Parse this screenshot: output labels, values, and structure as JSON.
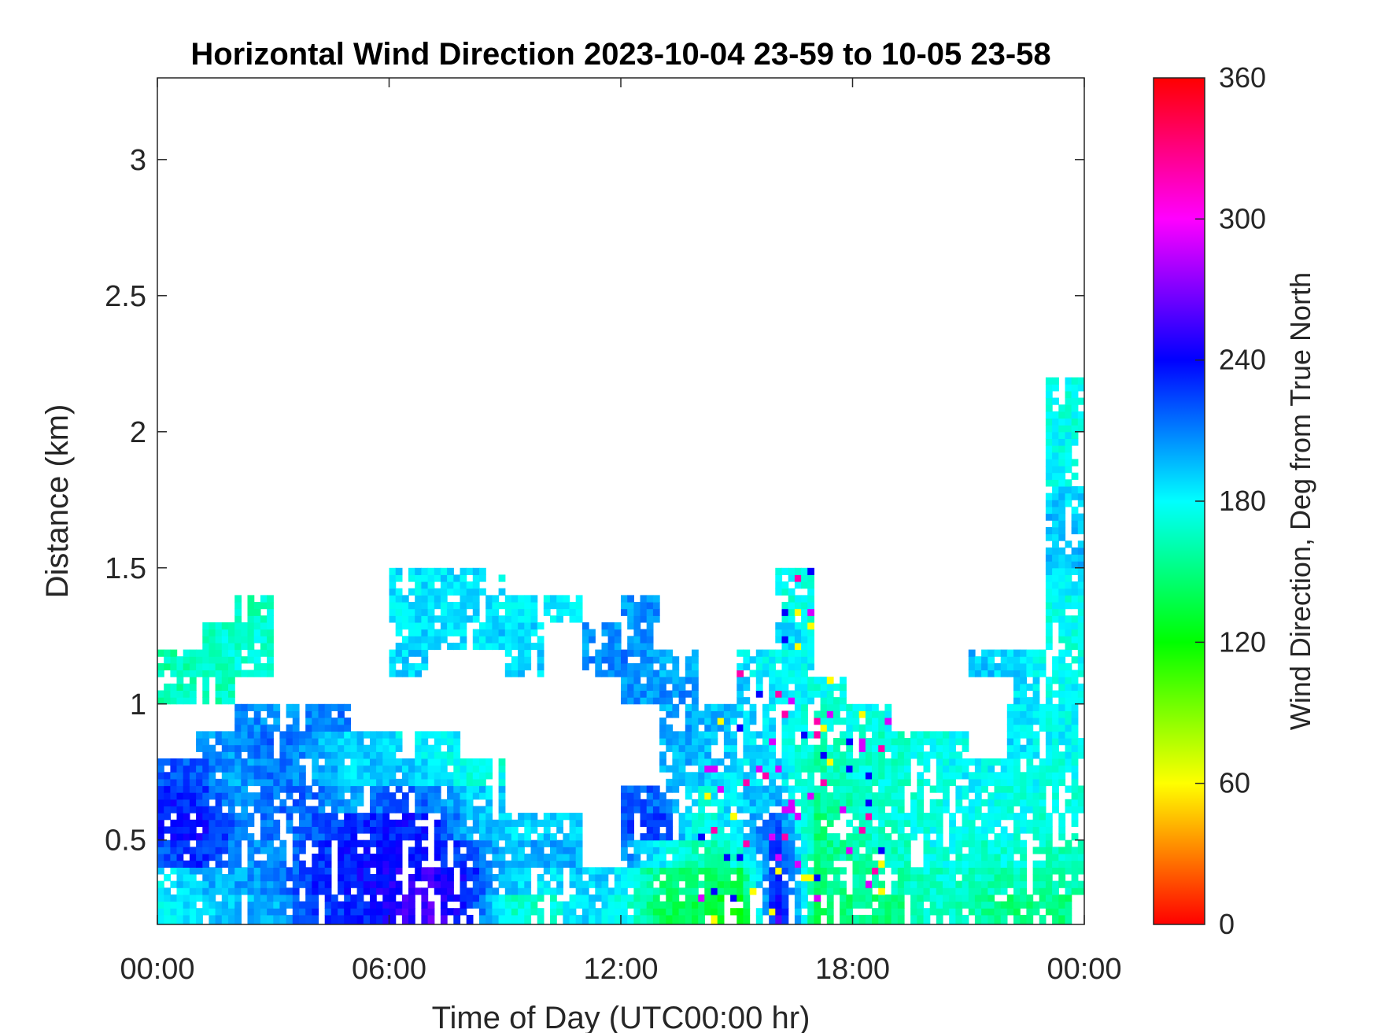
{
  "chart_data": {
    "type": "heatmap",
    "title": "Horizontal Wind Direction 2023-10-04 23-59 to 10-05 23-58",
    "xlabel": "Time of Day (UTC00:00 hr)",
    "ylabel": "Distance (km)",
    "xlim": [
      0,
      24
    ],
    "ylim": [
      0.19,
      3.3
    ],
    "x_ticks": [
      0,
      6,
      12,
      18,
      24
    ],
    "x_tick_labels": [
      "00:00",
      "06:00",
      "12:00",
      "18:00",
      "00:00"
    ],
    "y_ticks": [
      0.5,
      1,
      1.5,
      2,
      2.5,
      3
    ],
    "y_tick_labels": [
      "0.5",
      "1",
      "1.5",
      "2",
      "2.5",
      "3"
    ],
    "colorbar": {
      "label": "Wind Direction, Deg from True North",
      "range": [
        0,
        360
      ],
      "ticks": [
        0,
        60,
        120,
        180,
        240,
        300,
        360
      ],
      "tick_labels": [
        "0",
        "60",
        "120",
        "180",
        "240",
        "300",
        "360"
      ],
      "colormap": "hsv"
    },
    "grid": false,
    "hours": [
      0,
      1,
      2,
      3,
      4,
      5,
      6,
      7,
      8,
      9,
      10,
      11,
      12,
      13,
      14,
      15,
      16,
      17,
      18,
      19,
      20,
      21,
      22,
      23
    ],
    "height_bin_km": 0.1,
    "height_centers_km": [
      0.25,
      0.35,
      0.45,
      0.55,
      0.65,
      0.75,
      0.85,
      0.95,
      1.05,
      1.15,
      1.25,
      1.35,
      1.45,
      1.55,
      1.65,
      1.75,
      1.85,
      1.95,
      2.05,
      2.15
    ],
    "direction_deg": [
      [
        180,
        190,
        195,
        200,
        225,
        230,
        245,
        262,
        230,
        170,
        170,
        190,
        175,
        140,
        140,
        120,
        250,
        140,
        150,
        150,
        170,
        160,
        150,
        150
      ],
      [
        185,
        195,
        200,
        210,
        230,
        235,
        245,
        250,
        235,
        190,
        185,
        195,
        180,
        150,
        150,
        140,
        240,
        150,
        155,
        160,
        170,
        165,
        160,
        160
      ],
      [
        220,
        230,
        210,
        205,
        225,
        235,
        240,
        240,
        220,
        195,
        200,
        null,
        210,
        180,
        160,
        170,
        230,
        150,
        160,
        165,
        175,
        170,
        170,
        165
      ],
      [
        235,
        240,
        215,
        210,
        220,
        230,
        235,
        235,
        195,
        190,
        190,
        null,
        225,
        225,
        170,
        190,
        220,
        150,
        165,
        170,
        175,
        175,
        175,
        170
      ],
      [
        235,
        230,
        205,
        215,
        215,
        200,
        220,
        215,
        190,
        null,
        null,
        null,
        220,
        215,
        175,
        190,
        200,
        155,
        165,
        170,
        175,
        180,
        175,
        175
      ],
      [
        220,
        220,
        200,
        215,
        200,
        190,
        195,
        190,
        175,
        null,
        null,
        null,
        null,
        200,
        195,
        185,
        190,
        160,
        170,
        170,
        175,
        180,
        180,
        175
      ],
      [
        null,
        205,
        205,
        220,
        200,
        190,
        185,
        180,
        null,
        null,
        null,
        null,
        null,
        200,
        195,
        190,
        180,
        165,
        170,
        170,
        175,
        null,
        185,
        180
      ],
      [
        null,
        null,
        210,
        205,
        210,
        null,
        null,
        null,
        null,
        null,
        null,
        null,
        null,
        200,
        200,
        190,
        185,
        170,
        175,
        null,
        null,
        null,
        185,
        180
      ],
      [
        160,
        165,
        null,
        null,
        null,
        null,
        null,
        null,
        null,
        null,
        null,
        null,
        205,
        205,
        null,
        190,
        190,
        175,
        null,
        null,
        null,
        null,
        190,
        180
      ],
      [
        160,
        165,
        170,
        null,
        null,
        null,
        190,
        null,
        null,
        190,
        null,
        205,
        210,
        200,
        null,
        185,
        180,
        null,
        null,
        null,
        null,
        195,
        190,
        175
      ],
      [
        null,
        165,
        170,
        null,
        null,
        null,
        185,
        190,
        185,
        190,
        null,
        205,
        205,
        null,
        null,
        null,
        185,
        null,
        null,
        null,
        null,
        null,
        null,
        175
      ],
      [
        null,
        null,
        165,
        null,
        null,
        null,
        185,
        185,
        185,
        185,
        185,
        null,
        205,
        null,
        null,
        null,
        175,
        null,
        null,
        null,
        null,
        null,
        null,
        175
      ],
      [
        null,
        null,
        null,
        null,
        null,
        null,
        185,
        185,
        185,
        null,
        null,
        null,
        null,
        null,
        null,
        null,
        175,
        null,
        null,
        null,
        null,
        null,
        null,
        185
      ],
      [
        null,
        null,
        null,
        null,
        null,
        null,
        null,
        null,
        null,
        null,
        null,
        null,
        null,
        null,
        null,
        null,
        null,
        null,
        null,
        null,
        null,
        null,
        null,
        195
      ],
      [
        null,
        null,
        null,
        null,
        null,
        null,
        null,
        null,
        null,
        null,
        null,
        null,
        null,
        null,
        null,
        null,
        null,
        null,
        null,
        null,
        null,
        null,
        null,
        195
      ],
      [
        null,
        null,
        null,
        null,
        null,
        null,
        null,
        null,
        null,
        null,
        null,
        null,
        null,
        null,
        null,
        null,
        null,
        null,
        null,
        null,
        null,
        null,
        null,
        190
      ],
      [
        null,
        null,
        null,
        null,
        null,
        null,
        null,
        null,
        null,
        null,
        null,
        null,
        null,
        null,
        null,
        null,
        null,
        null,
        null,
        null,
        null,
        null,
        null,
        180
      ],
      [
        null,
        null,
        null,
        null,
        null,
        null,
        null,
        null,
        null,
        null,
        null,
        null,
        null,
        null,
        null,
        null,
        null,
        null,
        null,
        null,
        null,
        null,
        null,
        178
      ],
      [
        null,
        null,
        null,
        null,
        null,
        null,
        null,
        null,
        null,
        null,
        null,
        null,
        null,
        null,
        null,
        null,
        null,
        null,
        null,
        null,
        null,
        null,
        null,
        175
      ],
      [
        null,
        null,
        null,
        null,
        null,
        null,
        null,
        null,
        null,
        null,
        null,
        null,
        null,
        null,
        null,
        null,
        null,
        null,
        null,
        null,
        null,
        null,
        null,
        175
      ]
    ]
  }
}
